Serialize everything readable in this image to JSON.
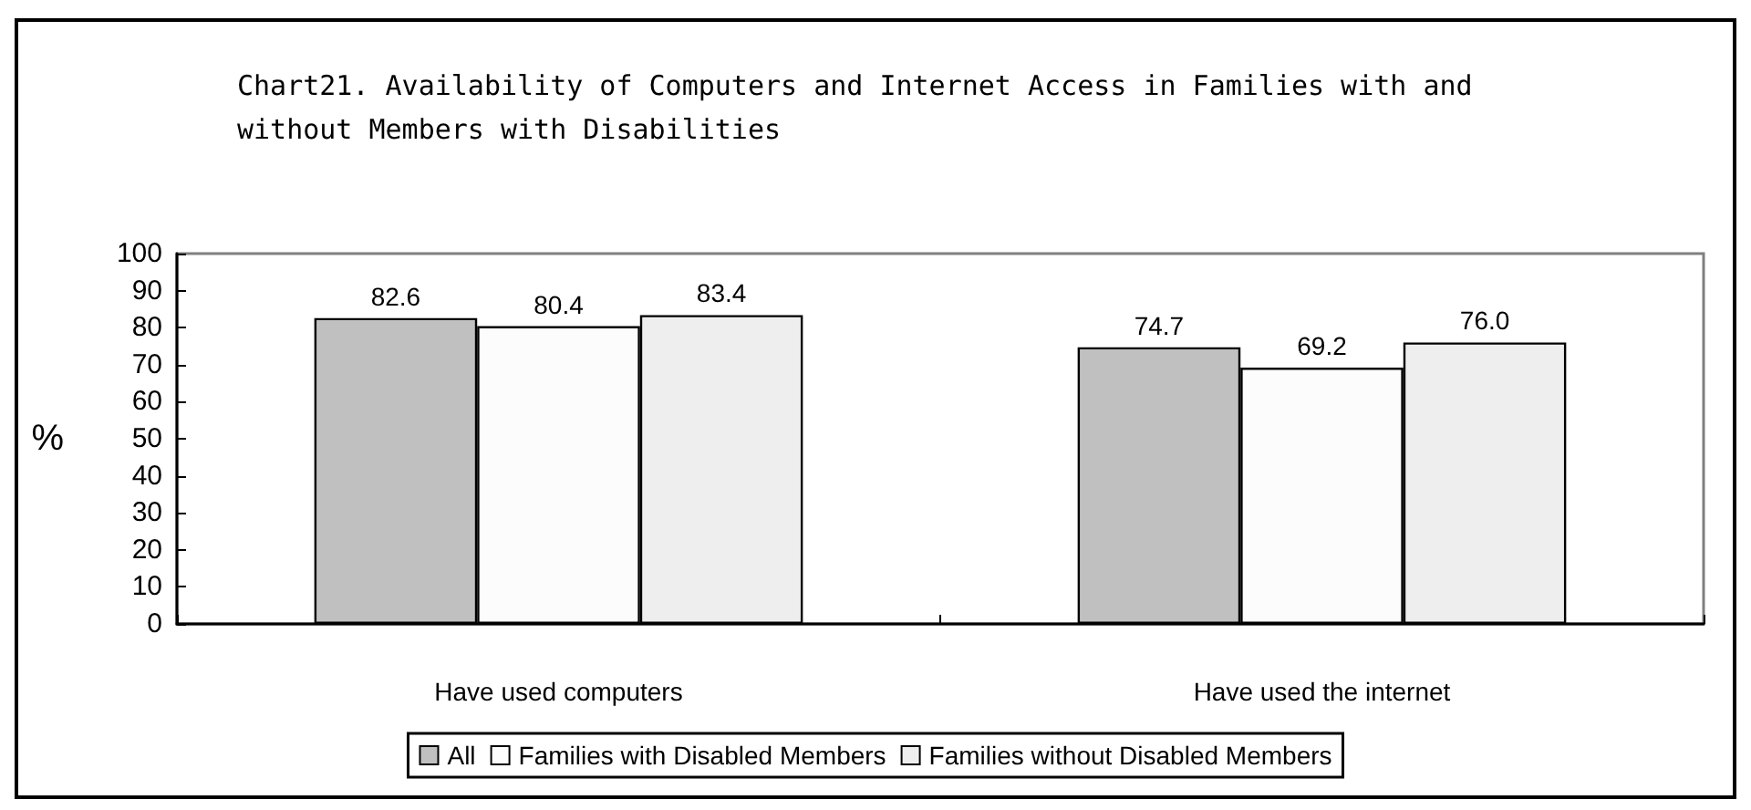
{
  "chart_data": {
    "type": "bar",
    "title": "Chart21. Availability of Computers and Internet Access in Families with and without Members with Disabilities",
    "ylabel": "%",
    "categories": [
      "Have used computers",
      "Have used the internet"
    ],
    "series": [
      {
        "name": "All",
        "color": "#c0c0c0",
        "values": [
          82.6,
          74.7
        ],
        "value_labels": [
          "82.6",
          "74.7"
        ]
      },
      {
        "name": "Families with Disabled Members",
        "color": "#fcfcfc",
        "values": [
          80.4,
          69.2
        ],
        "value_labels": [
          "80.4",
          "69.2"
        ]
      },
      {
        "name": "Families without Disabled Members",
        "color": "#eeeeee",
        "values": [
          83.4,
          76.0
        ],
        "value_labels": [
          "83.4",
          "76.0"
        ]
      }
    ],
    "ylim": [
      0,
      100
    ],
    "yticks": [
      0,
      10,
      20,
      30,
      40,
      50,
      60,
      70,
      80,
      90,
      100
    ],
    "grid": false,
    "legend": "bottom"
  }
}
